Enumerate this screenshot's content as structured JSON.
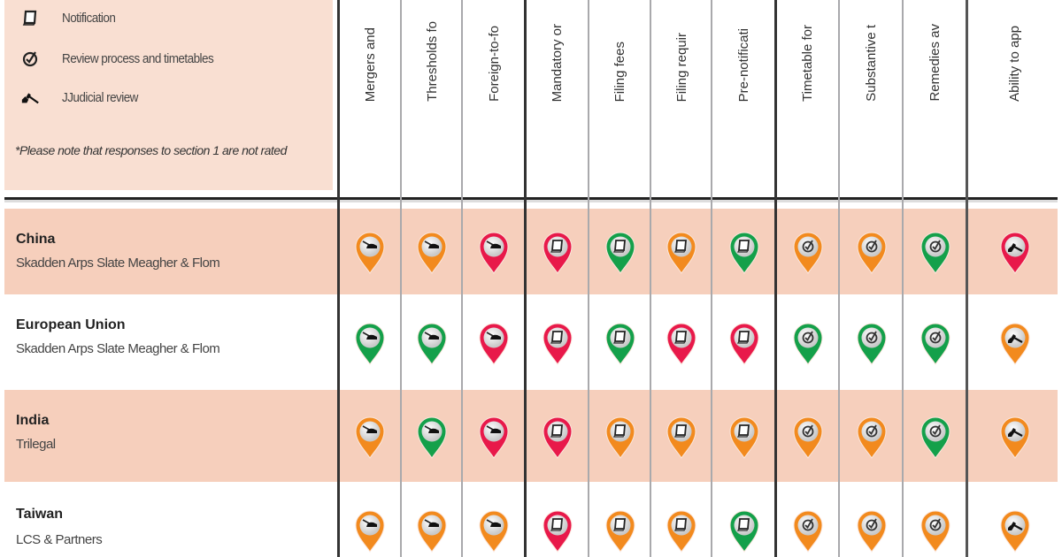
{
  "legend": {
    "items": [
      {
        "icon": "notification-book-icon",
        "label": "Notification"
      },
      {
        "icon": "review-process-icon",
        "label": "Review process and timetables"
      },
      {
        "icon": "judicial-gavel-icon",
        "label": "JJudicial review"
      }
    ],
    "note": "*Please note that responses to section 1 are not rated"
  },
  "colors": {
    "green": "#14a04a",
    "orange": "#f28a1e",
    "red": "#e8194a",
    "band": "#f6cfbc",
    "legend_bg": "#f9dfd2"
  },
  "columns": [
    {
      "label": "Mergers and",
      "icon": "tank"
    },
    {
      "label": "Thresholds fo",
      "icon": "tank"
    },
    {
      "label": "Foreign-to-fo",
      "icon": "tank"
    },
    {
      "label": "Mandatory or",
      "icon": "book"
    },
    {
      "label": "Filing fees",
      "icon": "book"
    },
    {
      "label": "Filing requir",
      "icon": "book"
    },
    {
      "label": "Pre-notificati",
      "icon": "book"
    },
    {
      "label": "Timetable for",
      "icon": "review"
    },
    {
      "label": "Substantive t",
      "icon": "review"
    },
    {
      "label": "Remedies av",
      "icon": "review"
    },
    {
      "label": "Ability to app",
      "icon": "gavel"
    }
  ],
  "rows": [
    {
      "country": "China",
      "firm": "Skadden Arps Slate Meagher & Flom",
      "ratings": [
        "orange",
        "orange",
        "red",
        "red",
        "green",
        "orange",
        "green",
        "orange",
        "orange",
        "green",
        "red"
      ]
    },
    {
      "country": "European Union",
      "firm": "Skadden Arps Slate Meagher & Flom",
      "ratings": [
        "green",
        "green",
        "red",
        "red",
        "green",
        "red",
        "red",
        "green",
        "green",
        "green",
        "orange"
      ]
    },
    {
      "country": "India",
      "firm": "Trilegal",
      "ratings": [
        "orange",
        "green",
        "red",
        "red",
        "orange",
        "orange",
        "orange",
        "orange",
        "orange",
        "green",
        "orange"
      ]
    },
    {
      "country": "Taiwan",
      "firm": "LCS & Partners",
      "ratings": [
        "orange",
        "orange",
        "orange",
        "red",
        "orange",
        "orange",
        "green",
        "orange",
        "orange",
        "orange",
        "orange"
      ]
    }
  ]
}
